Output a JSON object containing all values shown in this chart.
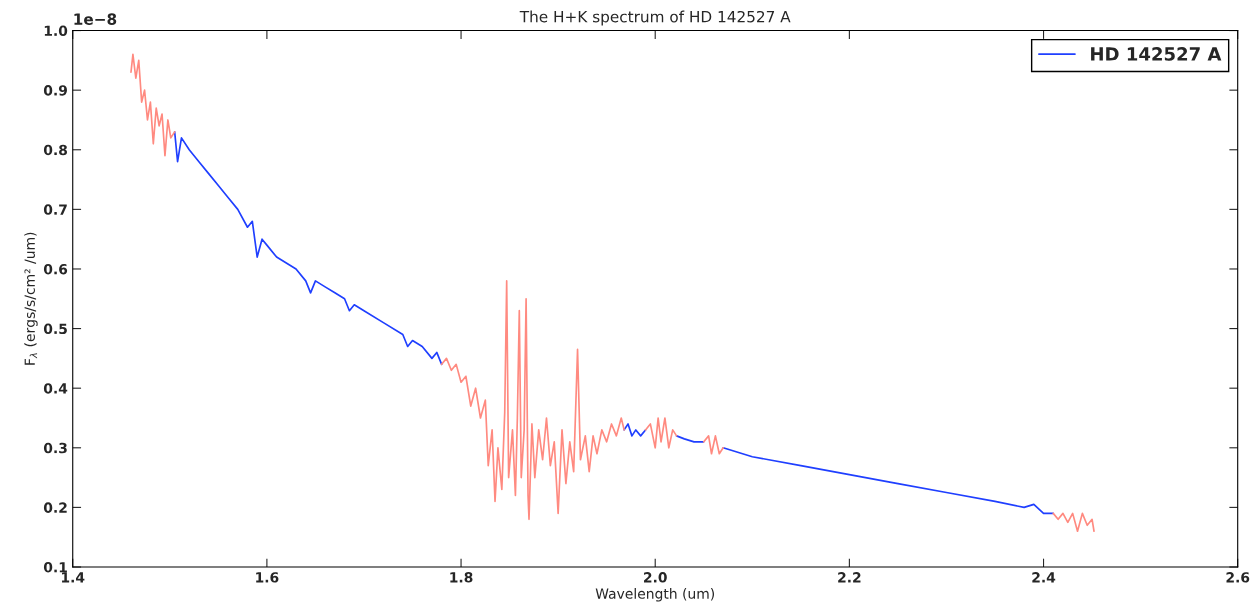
{
  "chart_data": {
    "type": "line",
    "title": "The H+K spectrum of HD 142527 A",
    "xlabel": "Wavelength (um)",
    "ylabel": "F$_{λ}$ (ergs/s/cm² /um)",
    "annotations": [
      "1e−8"
    ],
    "xlim": [
      1.4,
      2.6
    ],
    "ylim": [
      0.1,
      1.0
    ],
    "xticks": [
      {
        "value": 1.4,
        "label": "1.4"
      },
      {
        "value": 1.6,
        "label": "1.6"
      },
      {
        "value": 1.8,
        "label": "1.8"
      },
      {
        "value": 2.0,
        "label": "2.0"
      },
      {
        "value": 2.2,
        "label": "2.2"
      },
      {
        "value": 2.4,
        "label": "2.4"
      },
      {
        "value": 2.6,
        "label": "2.6"
      }
    ],
    "yticks": [
      {
        "value": 0.1,
        "label": "0.1"
      },
      {
        "value": 0.2,
        "label": "0.2"
      },
      {
        "value": 0.3,
        "label": "0.3"
      },
      {
        "value": 0.4,
        "label": "0.4"
      },
      {
        "value": 0.5,
        "label": "0.5"
      },
      {
        "value": 0.6,
        "label": "0.6"
      },
      {
        "value": 0.7,
        "label": "0.7"
      },
      {
        "value": 0.8,
        "label": "0.8"
      },
      {
        "value": 0.9,
        "label": "0.9"
      },
      {
        "value": 1.0,
        "label": "1.0"
      }
    ],
    "grid": false,
    "legend": "top right",
    "marker": "none",
    "line_style": "solid",
    "series": [
      {
        "name": "HD 142527 A",
        "color": "#1f3fff",
        "x": [
          1.505,
          1.508,
          1.512,
          1.52,
          1.53,
          1.54,
          1.55,
          1.56,
          1.57,
          1.58,
          1.585,
          1.59,
          1.595,
          1.6,
          1.61,
          1.62,
          1.63,
          1.64,
          1.645,
          1.65,
          1.66,
          1.67,
          1.68,
          1.685,
          1.69,
          1.7,
          1.72,
          1.74,
          1.745,
          1.75,
          1.76,
          1.77,
          1.775,
          1.78,
          1.9,
          1.968,
          1.972,
          1.976,
          1.98,
          1.985,
          1.99,
          2.0,
          2.022,
          2.03,
          2.04,
          2.05,
          2.06,
          2.07,
          2.1,
          2.15,
          2.2,
          2.25,
          2.3,
          2.35,
          2.38,
          2.39,
          2.4,
          2.41
        ],
        "values": [
          0.83,
          0.78,
          0.82,
          0.8,
          0.78,
          0.76,
          0.74,
          0.72,
          0.7,
          0.67,
          0.68,
          0.62,
          0.65,
          0.64,
          0.62,
          0.61,
          0.6,
          0.58,
          0.56,
          0.58,
          0.57,
          0.56,
          0.55,
          0.53,
          0.54,
          0.53,
          0.51,
          0.49,
          0.47,
          0.48,
          0.47,
          0.45,
          0.46,
          0.44,
          null,
          0.33,
          0.34,
          0.32,
          0.33,
          0.32,
          0.33,
          null,
          0.32,
          0.315,
          0.31,
          0.31,
          null,
          0.3,
          0.285,
          0.27,
          0.255,
          0.24,
          0.225,
          0.21,
          0.2,
          0.205,
          0.19,
          0.19
        ]
      },
      {
        "color": "#ff8a80",
        "x": [
          1.46,
          1.462,
          1.465,
          1.468,
          1.471,
          1.474,
          1.477,
          1.48,
          1.483,
          1.486,
          1.489,
          1.492,
          1.495,
          1.498,
          1.501,
          1.505,
          1.6,
          1.78,
          1.785,
          1.79,
          1.795,
          1.8,
          1.805,
          1.81,
          1.815,
          1.82,
          1.825,
          1.828,
          1.832,
          1.835,
          1.838,
          1.842,
          1.845,
          1.847,
          1.849,
          1.853,
          1.856,
          1.858,
          1.86,
          1.862,
          1.865,
          1.867,
          1.869,
          1.87,
          1.873,
          1.876,
          1.88,
          1.884,
          1.888,
          1.892,
          1.896,
          1.9,
          1.904,
          1.908,
          1.912,
          1.916,
          1.92,
          1.923,
          1.928,
          1.932,
          1.936,
          1.94,
          1.945,
          1.95,
          1.955,
          1.96,
          1.965,
          1.968,
          1.98,
          1.99,
          1.995,
          2.0,
          2.003,
          2.006,
          2.01,
          2.014,
          2.018,
          2.022,
          2.03,
          2.05,
          2.055,
          2.058,
          2.062,
          2.066,
          2.07,
          2.2,
          2.41,
          2.415,
          2.42,
          2.425,
          2.43,
          2.435,
          2.44,
          2.445,
          2.45,
          2.452
        ],
        "values": [
          0.93,
          0.96,
          0.92,
          0.95,
          0.88,
          0.9,
          0.85,
          0.88,
          0.81,
          0.87,
          0.84,
          0.86,
          0.79,
          0.85,
          0.82,
          0.83,
          null,
          0.44,
          0.45,
          0.43,
          0.44,
          0.41,
          0.42,
          0.37,
          0.4,
          0.35,
          0.38,
          0.27,
          0.33,
          0.21,
          0.3,
          0.23,
          0.36,
          0.58,
          0.25,
          0.33,
          0.22,
          0.35,
          0.53,
          0.25,
          0.33,
          0.55,
          0.22,
          0.18,
          0.34,
          0.25,
          0.33,
          0.28,
          0.35,
          0.27,
          0.31,
          0.19,
          0.33,
          0.24,
          0.31,
          0.26,
          0.465,
          0.28,
          0.32,
          0.26,
          0.32,
          0.29,
          0.33,
          0.31,
          0.34,
          0.32,
          0.35,
          0.33,
          null,
          0.33,
          0.34,
          0.3,
          0.35,
          0.31,
          0.35,
          0.3,
          0.33,
          0.32,
          null,
          0.31,
          0.32,
          0.29,
          0.32,
          0.29,
          0.3,
          null,
          0.19,
          0.18,
          0.19,
          0.175,
          0.19,
          0.16,
          0.19,
          0.17,
          0.18,
          0.16
        ]
      }
    ]
  }
}
